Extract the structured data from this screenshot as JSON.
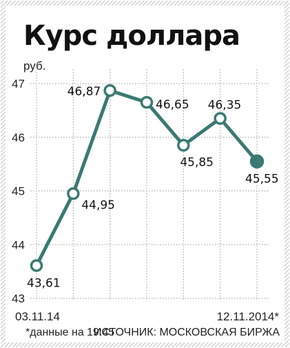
{
  "title": "Курс доллара",
  "unit_label": "руб.",
  "footnote": "*данные на 19:45",
  "source": "ИСТОЧНИК: МОСКОВСКАЯ БИРЖА",
  "colors": {
    "line": "#3a7a73",
    "border": "#9a9a9a",
    "grid": "#999999",
    "bg": "#ffffff"
  },
  "chart_data": {
    "type": "line",
    "x_start_label": "03.11.14",
    "x_end_label": "12.11.2014*",
    "y_ticks": [
      "43",
      "44",
      "45",
      "46",
      "47"
    ],
    "ylim": [
      43,
      47.2
    ],
    "grid": true,
    "series": [
      {
        "values": [
          43.61,
          44.95,
          46.87,
          46.65,
          45.85,
          46.35,
          45.55
        ],
        "labels": [
          "43,61",
          "44,95",
          "46,87",
          "46,65",
          "45,85",
          "46,35",
          "45,55"
        ],
        "last_point_filled": true
      }
    ]
  }
}
